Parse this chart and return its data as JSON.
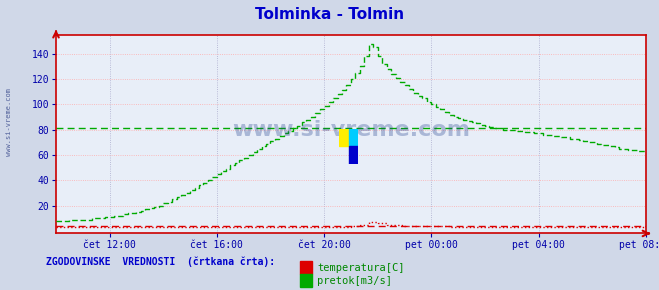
{
  "title": "Tolminka - Tolmin",
  "title_color": "#0000cc",
  "bg_color": "#d0d8e8",
  "plot_bg_color": "#e8eef8",
  "grid_color_h": "#ffaaaa",
  "grid_color_v": "#aaaacc",
  "ylabel_color": "#0000aa",
  "xlabel_color": "#0000aa",
  "watermark": "www.si-vreme.com",
  "watermark_color": "#1a3a8a",
  "legend_label": "ZGODOVINSKE  VREDNOSTI  (črtkana črta):",
  "legend_color": "#0000cc",
  "temp_label": "temperatura[C]",
  "flow_label": "pretok[m3/s]",
  "temp_color": "#dd0000",
  "flow_color": "#00aa00",
  "hist_flow_value": 81.0,
  "hist_temp_value": 3.5,
  "x_tick_labels": [
    "čet 12:00",
    "čet 16:00",
    "čet 20:00",
    "pet 00:00",
    "pet 04:00",
    "pet 08:00"
  ],
  "y_ticks": [
    20,
    40,
    60,
    80,
    100,
    120,
    140
  ],
  "ylim": [
    -2,
    155
  ],
  "xlim": [
    0,
    264
  ],
  "x_tick_positions": [
    24,
    72,
    120,
    168,
    216,
    264
  ],
  "flow_data_x": [
    0,
    2,
    4,
    6,
    8,
    10,
    12,
    14,
    16,
    18,
    20,
    22,
    24,
    26,
    28,
    30,
    32,
    34,
    36,
    38,
    40,
    42,
    44,
    46,
    48,
    50,
    52,
    54,
    56,
    58,
    60,
    62,
    64,
    66,
    68,
    70,
    72,
    74,
    76,
    78,
    80,
    82,
    84,
    86,
    88,
    90,
    92,
    94,
    96,
    98,
    100,
    102,
    104,
    106,
    108,
    110,
    112,
    114,
    116,
    118,
    120,
    122,
    124,
    126,
    128,
    130,
    132,
    134,
    136,
    138,
    140,
    142,
    144,
    146,
    148,
    150,
    152,
    154,
    156,
    158,
    160,
    162,
    164,
    166,
    168,
    170,
    172,
    174,
    176,
    178,
    180,
    182,
    184,
    186,
    188,
    190,
    192,
    194,
    196,
    198,
    200,
    202,
    204,
    206,
    208,
    210,
    212,
    214,
    216,
    218,
    220,
    222,
    224,
    226,
    228,
    230,
    232,
    234,
    236,
    238,
    240,
    242,
    244,
    246,
    248,
    250,
    252,
    254,
    256,
    258,
    260,
    262,
    264
  ],
  "flow_data_y": [
    8,
    8,
    8,
    9,
    9,
    9,
    9,
    9,
    10,
    10,
    10,
    11,
    11,
    12,
    12,
    13,
    14,
    14,
    15,
    16,
    17,
    18,
    19,
    20,
    22,
    23,
    25,
    27,
    28,
    30,
    32,
    34,
    36,
    38,
    40,
    43,
    45,
    47,
    49,
    52,
    54,
    56,
    58,
    60,
    62,
    65,
    67,
    69,
    71,
    73,
    75,
    77,
    79,
    81,
    83,
    86,
    88,
    90,
    93,
    96,
    99,
    102,
    105,
    108,
    111,
    115,
    120,
    125,
    130,
    138,
    148,
    145,
    138,
    132,
    128,
    124,
    121,
    118,
    115,
    112,
    109,
    107,
    105,
    102,
    100,
    98,
    96,
    94,
    92,
    90,
    89,
    88,
    87,
    86,
    85,
    84,
    83,
    82,
    81,
    81,
    80,
    80,
    80,
    79,
    79,
    78,
    78,
    77,
    77,
    76,
    76,
    75,
    75,
    74,
    74,
    73,
    73,
    72,
    71,
    70,
    70,
    69,
    68,
    68,
    67,
    66,
    65,
    65,
    64,
    64,
    63,
    63,
    62
  ],
  "temp_data_x": [
    0,
    10,
    20,
    30,
    40,
    50,
    60,
    70,
    80,
    90,
    100,
    110,
    120,
    128,
    132,
    136,
    140,
    144,
    148,
    155,
    160,
    168,
    176,
    184,
    192,
    200,
    210,
    220,
    230,
    240,
    250,
    260,
    264
  ],
  "temp_data_y": [
    3,
    3,
    3,
    3,
    3,
    3,
    3,
    3,
    3,
    3,
    3,
    3,
    3,
    3,
    4,
    5,
    7,
    6,
    5,
    4,
    4,
    4,
    3,
    3,
    3,
    3,
    3,
    3,
    3,
    3,
    3,
    3,
    3
  ],
  "arrow_color": "#cc0000",
  "axis_color": "#cc0000",
  "logo_yellow": "#ffee00",
  "logo_cyan": "#00ccff",
  "logo_blue": "#0000cc"
}
